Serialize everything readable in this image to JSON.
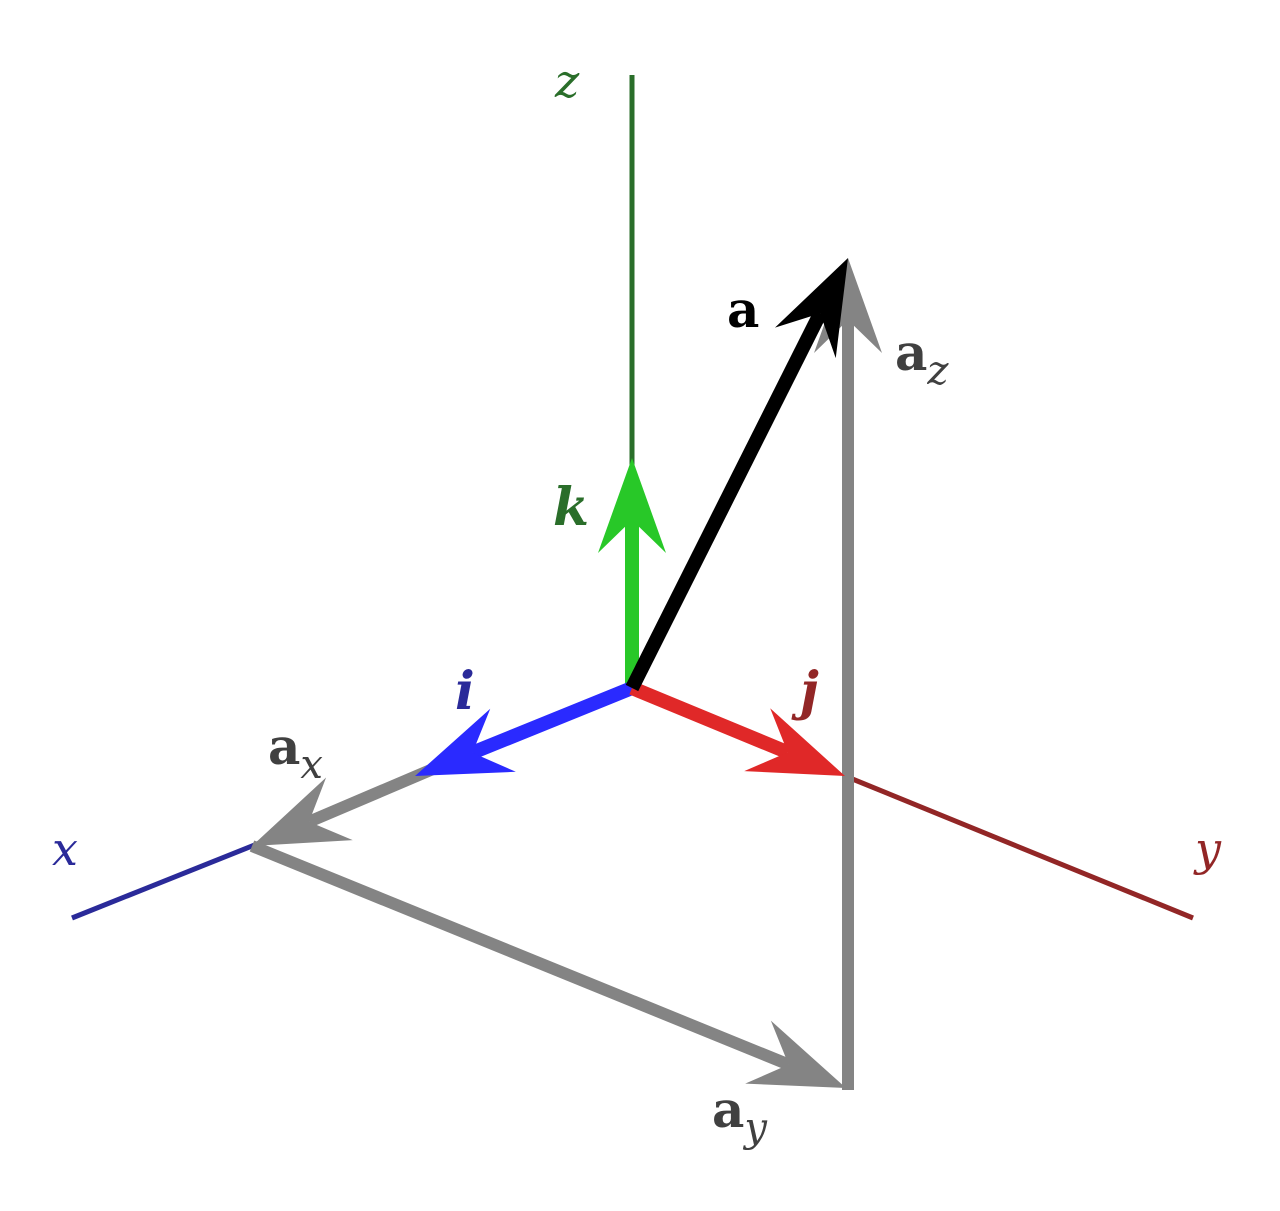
{
  "labels": {
    "z": "z",
    "x": "x",
    "y": "y",
    "k": "k",
    "i": "i",
    "j": "j",
    "a": "a",
    "a_z": {
      "base": "a",
      "sub": "z"
    },
    "a_x": {
      "base": "a",
      "sub": "x"
    },
    "a_y": {
      "base": "a",
      "sub": "y"
    }
  },
  "colors": {
    "z_axis": "#2a6e2a",
    "x_axis": "#2a2a99",
    "y_axis": "#922626",
    "k": "#28c828",
    "i": "#2a2aff",
    "j": "#e02828",
    "a": "#000000",
    "components": "#848484",
    "component_labels": "#404040"
  }
}
